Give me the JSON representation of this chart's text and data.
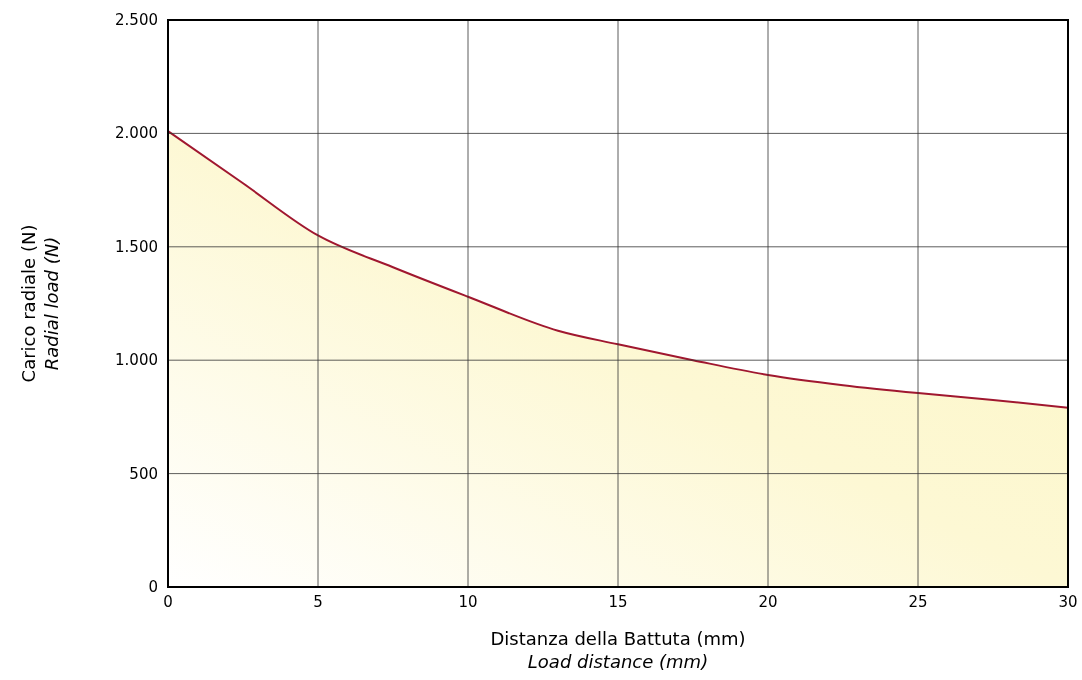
{
  "chart_data": {
    "type": "area",
    "xlabel": "Distanza della Battuta (mm)\nLoad distance (mm)",
    "ylabel": "Carico radiale (N)\nRadial load (N)",
    "x": [
      0,
      2.5,
      5,
      7.5,
      10,
      13,
      15,
      17.5,
      20,
      22.5,
      25,
      27.5,
      30
    ],
    "series": [
      {
        "color": "#a0172f",
        "values": [
          2010,
          1780,
          1550,
          1410,
          1280,
          1130,
          1070,
          1000,
          935,
          890,
          855,
          825,
          790
        ]
      }
    ],
    "xlim": [
      0,
      30
    ],
    "xticks": [
      0,
      5,
      10,
      15,
      20,
      25,
      30
    ],
    "ylim": [
      0,
      2500
    ],
    "yticks": [
      0,
      500,
      {
        "value": 1000,
        "label": "1.000"
      },
      {
        "value": 1500,
        "label": "1.500"
      },
      {
        "value": 2000,
        "label": "2.000"
      },
      {
        "value": 2500,
        "label": "2.500"
      }
    ],
    "grid": true
  }
}
